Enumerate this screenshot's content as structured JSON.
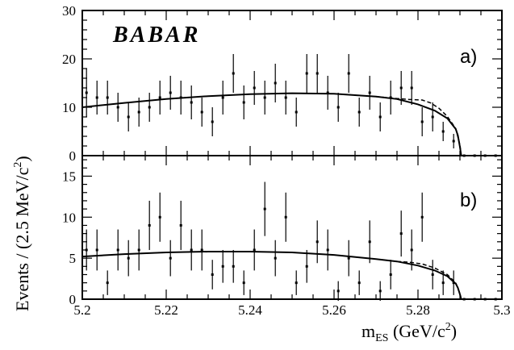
{
  "chart_data": [
    {
      "panel": "a)",
      "type": "scatter",
      "logo": "BABAR",
      "xlim": [
        5.2,
        5.3
      ],
      "ylim": [
        0,
        30
      ],
      "yticks": [
        0,
        10,
        20,
        30
      ],
      "points": [
        {
          "x": 5.201,
          "y": 13,
          "err": 5
        },
        {
          "x": 5.2035,
          "y": 12,
          "err": 3.5
        },
        {
          "x": 5.206,
          "y": 12,
          "err": 3.5
        },
        {
          "x": 5.2085,
          "y": 10,
          "err": 3
        },
        {
          "x": 5.211,
          "y": 8,
          "err": 3
        },
        {
          "x": 5.2135,
          "y": 9,
          "err": 3
        },
        {
          "x": 5.216,
          "y": 10,
          "err": 3
        },
        {
          "x": 5.2185,
          "y": 12,
          "err": 3.5
        },
        {
          "x": 5.221,
          "y": 13,
          "err": 3.5
        },
        {
          "x": 5.2235,
          "y": 12,
          "err": 3.5
        },
        {
          "x": 5.226,
          "y": 11,
          "err": 3.5
        },
        {
          "x": 5.2285,
          "y": 9,
          "err": 3
        },
        {
          "x": 5.231,
          "y": 7,
          "err": 3
        },
        {
          "x": 5.2335,
          "y": 12,
          "err": 3.5
        },
        {
          "x": 5.236,
          "y": 17,
          "err": 4
        },
        {
          "x": 5.2385,
          "y": 11,
          "err": 3.5
        },
        {
          "x": 5.241,
          "y": 14,
          "err": 3.5
        },
        {
          "x": 5.2435,
          "y": 12,
          "err": 3.5
        },
        {
          "x": 5.246,
          "y": 15,
          "err": 4
        },
        {
          "x": 5.2485,
          "y": 12,
          "err": 3.5
        },
        {
          "x": 5.251,
          "y": 9,
          "err": 3
        },
        {
          "x": 5.2535,
          "y": 17,
          "err": 4
        },
        {
          "x": 5.256,
          "y": 17,
          "err": 4
        },
        {
          "x": 5.2585,
          "y": 13,
          "err": 3.5
        },
        {
          "x": 5.261,
          "y": 10,
          "err": 3
        },
        {
          "x": 5.2635,
          "y": 17,
          "err": 4
        },
        {
          "x": 5.266,
          "y": 9,
          "err": 3
        },
        {
          "x": 5.2685,
          "y": 13,
          "err": 3.5
        },
        {
          "x": 5.271,
          "y": 8,
          "err": 3
        },
        {
          "x": 5.2735,
          "y": 12,
          "err": 3.5
        },
        {
          "x": 5.276,
          "y": 14,
          "err": 3.5
        },
        {
          "x": 5.2785,
          "y": 14,
          "err": 3.5
        },
        {
          "x": 5.281,
          "y": 7,
          "err": 3
        },
        {
          "x": 5.2835,
          "y": 8,
          "err": 3
        },
        {
          "x": 5.286,
          "y": 5,
          "err": 2
        },
        {
          "x": 5.2885,
          "y": 3,
          "err": 1.5
        },
        {
          "x": 5.291,
          "y": 0,
          "err": 0
        },
        {
          "x": 5.2935,
          "y": 0,
          "err": 0
        },
        {
          "x": 5.296,
          "y": 0,
          "err": 0
        },
        {
          "x": 5.2985,
          "y": 0,
          "err": 0
        }
      ],
      "fit_solid": [
        [
          5.2,
          10
        ],
        [
          5.21,
          10.9
        ],
        [
          5.22,
          11.7
        ],
        [
          5.23,
          12.3
        ],
        [
          5.24,
          12.7
        ],
        [
          5.25,
          12.9
        ],
        [
          5.26,
          12.8
        ],
        [
          5.27,
          12.2
        ],
        [
          5.275,
          11.7
        ],
        [
          5.28,
          10.6
        ],
        [
          5.284,
          9.3
        ],
        [
          5.287,
          7.7
        ],
        [
          5.289,
          5.5
        ],
        [
          5.2895,
          4.2
        ],
        [
          5.29,
          1.8
        ],
        [
          5.2903,
          0
        ]
      ],
      "fit_dashed": [
        [
          5.27,
          12.2
        ],
        [
          5.275,
          11.8
        ],
        [
          5.278,
          11.6
        ],
        [
          5.281,
          11.5
        ],
        [
          5.283,
          10.9
        ],
        [
          5.285,
          9.8
        ],
        [
          5.287,
          8.1
        ],
        [
          5.289,
          5.6
        ],
        [
          5.29,
          2.2
        ],
        [
          5.2903,
          0
        ]
      ]
    },
    {
      "panel": "b)",
      "type": "scatter",
      "xlim": [
        5.2,
        5.3
      ],
      "ylim": [
        0,
        17.5
      ],
      "yticks": [
        0,
        5,
        10,
        15
      ],
      "xticks": [
        "5.2",
        "5.22",
        "5.24",
        "5.26",
        "5.28",
        "5.3"
      ],
      "points": [
        {
          "x": 5.201,
          "y": 6,
          "err": 2.5
        },
        {
          "x": 5.2035,
          "y": 6,
          "err": 2.5
        },
        {
          "x": 5.206,
          "y": 2,
          "err": 1.5
        },
        {
          "x": 5.2085,
          "y": 6,
          "err": 2.5
        },
        {
          "x": 5.211,
          "y": 5,
          "err": 2.2
        },
        {
          "x": 5.2135,
          "y": 6,
          "err": 2.5
        },
        {
          "x": 5.216,
          "y": 9,
          "err": 3
        },
        {
          "x": 5.2185,
          "y": 10,
          "err": 3
        },
        {
          "x": 5.221,
          "y": 5,
          "err": 2.2
        },
        {
          "x": 5.2235,
          "y": 9,
          "err": 3
        },
        {
          "x": 5.226,
          "y": 6,
          "err": 2.5
        },
        {
          "x": 5.2285,
          "y": 6,
          "err": 2.5
        },
        {
          "x": 5.231,
          "y": 3,
          "err": 1.8
        },
        {
          "x": 5.2335,
          "y": 4,
          "err": 2
        },
        {
          "x": 5.236,
          "y": 4,
          "err": 2
        },
        {
          "x": 5.2385,
          "y": 2,
          "err": 1.5
        },
        {
          "x": 5.241,
          "y": 6,
          "err": 2.5
        },
        {
          "x": 5.2435,
          "y": 11,
          "err": 3.3
        },
        {
          "x": 5.246,
          "y": 5,
          "err": 2.2
        },
        {
          "x": 5.2485,
          "y": 10,
          "err": 3
        },
        {
          "x": 5.251,
          "y": 2,
          "err": 1.5
        },
        {
          "x": 5.2535,
          "y": 4,
          "err": 2
        },
        {
          "x": 5.256,
          "y": 7,
          "err": 2.6
        },
        {
          "x": 5.2585,
          "y": 6,
          "err": 2.5
        },
        {
          "x": 5.261,
          "y": 1,
          "err": 1.2
        },
        {
          "x": 5.2635,
          "y": 5,
          "err": 2.2
        },
        {
          "x": 5.266,
          "y": 2,
          "err": 1.5
        },
        {
          "x": 5.2685,
          "y": 7,
          "err": 2.6
        },
        {
          "x": 5.271,
          "y": 1,
          "err": 1.2
        },
        {
          "x": 5.2735,
          "y": 3,
          "err": 1.8
        },
        {
          "x": 5.276,
          "y": 8,
          "err": 2.8
        },
        {
          "x": 5.2785,
          "y": 6,
          "err": 2.5
        },
        {
          "x": 5.281,
          "y": 10,
          "err": 3
        },
        {
          "x": 5.2835,
          "y": 3,
          "err": 1.8
        },
        {
          "x": 5.286,
          "y": 2,
          "err": 1.5
        },
        {
          "x": 5.2885,
          "y": 2,
          "err": 1.5
        },
        {
          "x": 5.291,
          "y": 0,
          "err": 0
        },
        {
          "x": 5.2935,
          "y": 0,
          "err": 0
        },
        {
          "x": 5.296,
          "y": 0,
          "err": 0
        },
        {
          "x": 5.2985,
          "y": 0,
          "err": 0
        }
      ],
      "fit_solid": [
        [
          5.2,
          5.2
        ],
        [
          5.21,
          5.5
        ],
        [
          5.22,
          5.7
        ],
        [
          5.23,
          5.8
        ],
        [
          5.24,
          5.8
        ],
        [
          5.25,
          5.7
        ],
        [
          5.26,
          5.4
        ],
        [
          5.27,
          4.9
        ],
        [
          5.275,
          4.6
        ],
        [
          5.28,
          4.1
        ],
        [
          5.284,
          3.5
        ],
        [
          5.287,
          2.8
        ],
        [
          5.289,
          1.9
        ],
        [
          5.2895,
          1.4
        ],
        [
          5.29,
          0.6
        ],
        [
          5.2903,
          0
        ]
      ],
      "fit_dashed": [
        [
          5.275,
          4.6
        ],
        [
          5.278,
          4.5
        ],
        [
          5.281,
          4.3
        ],
        [
          5.284,
          3.8
        ],
        [
          5.287,
          3.0
        ],
        [
          5.289,
          2.0
        ],
        [
          5.29,
          0.7
        ],
        [
          5.2903,
          0
        ]
      ]
    }
  ],
  "axes": {
    "ylabel": "Events / (2.5 MeV/c",
    "ylabel_sup": "2",
    "ylabel_close": ")",
    "xlabel_m": "m",
    "xlabel_sub": "ES",
    "xlabel_rest": " (GeV/c",
    "xlabel_sup": "2",
    "xlabel_close": ")"
  },
  "colors": {
    "ink": "#000000",
    "background": "#ffffff"
  }
}
